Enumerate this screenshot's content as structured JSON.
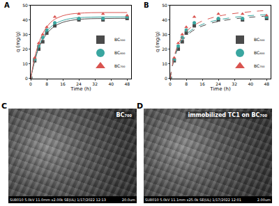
{
  "chart_data": [
    {
      "panel": "A",
      "type": "scatter",
      "line_style": "solid",
      "x_label": "Time (h)",
      "y_label": "q (mg/g)",
      "x": [
        0,
        2,
        4,
        6,
        8,
        12,
        24,
        36,
        48
      ],
      "fit_x": [
        0,
        2,
        4,
        6,
        8,
        10,
        12,
        16,
        20,
        24,
        30,
        36,
        42,
        48
      ],
      "series": [
        {
          "name": "BC₅₀₀",
          "color": "#4a4a4a",
          "marker": "square",
          "values": [
            0,
            12,
            20,
            25,
            31,
            36,
            40,
            40,
            41
          ],
          "fit": [
            0,
            11.8,
            20.8,
            26.2,
            30.5,
            33.5,
            35.7,
            38.3,
            39.6,
            40.3,
            40.8,
            40.9,
            41,
            41
          ]
        },
        {
          "name": "BC₆₀₀",
          "color": "#3aa6a0",
          "marker": "circle",
          "values": [
            0,
            13,
            22,
            28,
            33,
            38,
            41,
            41,
            42
          ],
          "fit": [
            0,
            12.7,
            21.5,
            27.7,
            32.1,
            35.1,
            37.2,
            39.6,
            40.9,
            41.5,
            41.8,
            42,
            42,
            42
          ]
        },
        {
          "name": "BC₇₀₀",
          "color": "#d9534f",
          "marker": "triangle-up",
          "values": [
            0,
            14,
            24,
            30,
            35,
            42,
            44,
            44,
            43
          ],
          "fit": [
            0,
            14.2,
            23.9,
            30.6,
            35.1,
            38.3,
            40.4,
            42.8,
            44.0,
            44.5,
            44.9,
            45,
            45,
            45
          ]
        }
      ],
      "xlim": [
        0,
        50
      ],
      "xticks": [
        0,
        8,
        16,
        24,
        32,
        40,
        48
      ],
      "ylim": [
        0,
        50
      ],
      "yticks": [
        0,
        10,
        20,
        30,
        40,
        50
      ],
      "legend": "lower right"
    },
    {
      "panel": "B",
      "type": "scatter",
      "line_style": "dash",
      "x_label": "Time (h)",
      "y_label": "q (mg/g)",
      "x": [
        0,
        2,
        4,
        6,
        8,
        12,
        24,
        36,
        48
      ],
      "fit_x": [
        0,
        2,
        4,
        6,
        8,
        10,
        12,
        16,
        20,
        24,
        30,
        36,
        42,
        48
      ],
      "series": [
        {
          "name": "BC₅₀₀",
          "color": "#4a4a4a",
          "marker": "square",
          "values": [
            0,
            12,
            20,
            25,
            31,
            36,
            40,
            40,
            41
          ],
          "fit": [
            0,
            13.4,
            20.9,
            25.6,
            28.9,
            31.3,
            33.2,
            35.8,
            37.6,
            38.9,
            40.3,
            41.3,
            42.0,
            42.6
          ]
        },
        {
          "name": "BC₆₀₀",
          "color": "#3aa6a0",
          "marker": "circle",
          "values": [
            0,
            13,
            22,
            28,
            33,
            38,
            41,
            41,
            42
          ],
          "fit": [
            0,
            14.1,
            21.8,
            26.7,
            30.0,
            32.4,
            34.3,
            36.9,
            38.7,
            40.0,
            41.4,
            42.4,
            43.1,
            43.6
          ]
        },
        {
          "name": "BC₇₀₀",
          "color": "#d9534f",
          "marker": "triangle-up",
          "values": [
            0,
            14,
            24,
            30,
            35,
            42,
            44,
            44,
            43
          ],
          "fit": [
            0,
            15.0,
            23.2,
            28.3,
            31.9,
            34.5,
            36.4,
            39.2,
            41.1,
            42.5,
            44.0,
            45.0,
            45.8,
            46.4
          ]
        }
      ],
      "xlim": [
        0,
        50
      ],
      "xticks": [
        0,
        8,
        16,
        24,
        32,
        40,
        48
      ],
      "ylim": [
        0,
        50
      ],
      "yticks": [
        0,
        10,
        20,
        30,
        40,
        50
      ],
      "legend": "lower right"
    }
  ],
  "images": [
    {
      "panel": "C",
      "label": "BC₇₀₀",
      "footer": "SU8010 5.0kV 11.0mm x2.00k SE(UL) 1/17/2022 12:13",
      "scale": "20.0um"
    },
    {
      "panel": "D",
      "label": "immobilized TC1 on BC₇₀₀",
      "footer": "SU8010 5.0kV 11.1mm x25.0k SE(UL) 1/17/2022 12:01",
      "scale": "2.00um"
    }
  ]
}
